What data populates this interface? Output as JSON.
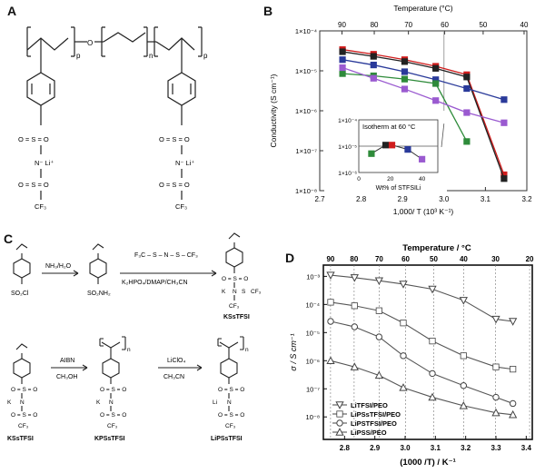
{
  "panels": {
    "A": {
      "label": "A",
      "subscript_p": "p",
      "subscript_n": "n",
      "oxygen": "O",
      "sulfonyl": "O = S = O",
      "nli": "N⁻ Li⁺",
      "cf3": "CF₃"
    },
    "B": {
      "label": "B",
      "inset_title": "Isotherm at 60 °C",
      "inset_xlabel": "Wt% of STFSILi"
    },
    "C": {
      "label": "C",
      "row1": {
        "start_group": "SO₂Cl",
        "step1_reagent": "NH₃/H₂O",
        "mid_group": "SO₂NH₂",
        "step2_reagent_top": "F₃C – S – N – S – CF₃",
        "step2_reagent_bottom": "K₂HPO₄/DMAP/CH₃CN",
        "product_name": "KSsTFSI"
      },
      "row2": {
        "start_name": "KSsTFSI",
        "step1_top": "AIBN",
        "step1_bottom": "CH₃OH",
        "mid_name": "KPSsTFSI",
        "step2_top": "LiClO₄",
        "step2_bottom": "CH₃CN",
        "product_name": "LiPSsTFSI"
      },
      "atoms": {
        "k": "K",
        "li": "Li",
        "n": "N",
        "s": "S",
        "o": "O",
        "cf3": "CF₃",
        "so2": "O = S = O",
        "n_sub": "n"
      }
    },
    "D": {
      "label": "D"
    }
  },
  "chart_data": [
    {
      "id": "B",
      "type": "line",
      "xlabel": "1,000/ T (10³ K⁻¹)",
      "ylabel": "Conductivity (S cm⁻¹)",
      "top_axis_label": "Temperature (°C)",
      "x_ticks": [
        "2.7",
        "2.8",
        "2.9",
        "3.0",
        "3.1",
        "3.2"
      ],
      "x_tick_values": [
        2.7,
        2.8,
        2.9,
        3.0,
        3.1,
        3.2
      ],
      "y_ticks": [
        "1×10⁻⁴",
        "1×10⁻⁵",
        "1×10⁻⁶",
        "1×10⁻⁷",
        "1×10⁻⁸"
      ],
      "y_tick_exps": [
        -4,
        -5,
        -6,
        -7,
        -8
      ],
      "top_ticks": [
        "90",
        "80",
        "70",
        "60",
        "50",
        "40"
      ],
      "top_tick_temps": [
        90,
        80,
        70,
        60,
        50,
        40
      ],
      "xlim": [
        2.7,
        3.2
      ],
      "ylim_log10": [
        -8,
        -4
      ],
      "reference_line_x": 3.0,
      "series": [
        {
          "color": "#d01c1c",
          "marker": "square",
          "x": [
            2.755,
            2.83,
            2.905,
            2.98,
            3.055,
            3.145
          ],
          "y": [
            3.4e-05,
            2.6e-05,
            1.9e-05,
            1.3e-05,
            8e-06,
            2.5e-08
          ]
        },
        {
          "color": "#222222",
          "marker": "square",
          "x": [
            2.755,
            2.83,
            2.905,
            2.98,
            3.055,
            3.145
          ],
          "y": [
            3e-05,
            2.3e-05,
            1.7e-05,
            1.15e-05,
            7e-06,
            2e-08
          ]
        },
        {
          "color": "#2a3a9a",
          "marker": "square",
          "x": [
            2.755,
            2.83,
            2.905,
            2.98,
            3.055,
            3.145
          ],
          "y": [
            1.9e-05,
            1.4e-05,
            9.5e-06,
            6e-06,
            3.6e-06,
            1.9e-06
          ]
        },
        {
          "color": "#2e8b3a",
          "marker": "square",
          "x": [
            2.755,
            2.83,
            2.905,
            2.98,
            3.055
          ],
          "y": [
            8.5e-06,
            7.5e-06,
            6.2e-06,
            4.8e-06,
            1.7e-07
          ]
        },
        {
          "color": "#9a5ad0",
          "marker": "square",
          "x": [
            2.755,
            2.83,
            2.905,
            2.98,
            3.055,
            3.145
          ],
          "y": [
            1.2e-05,
            6.5e-06,
            3.5e-06,
            1.8e-06,
            9e-07,
            5e-07
          ]
        }
      ],
      "inset": {
        "xlim": [
          0,
          50
        ],
        "ylim_log10": [
          -6,
          -4
        ],
        "x_ticks": [
          "0",
          "20",
          "40"
        ],
        "x_tick_values": [
          0,
          20,
          40
        ],
        "y_ticks": [
          "1×10⁻⁴",
          "1×10⁻⁵",
          "1×10⁻⁶"
        ],
        "y_tick_exps": [
          -4,
          -5,
          -6
        ],
        "reference_y": 1e-05,
        "points": [
          {
            "x": 8,
            "y": 5.2e-06,
            "color": "#2e8b3a"
          },
          {
            "x": 17,
            "y": 1.1e-05,
            "color": "#222222"
          },
          {
            "x": 21,
            "y": 1.1e-05,
            "color": "#d01c1c"
          },
          {
            "x": 31,
            "y": 7.5e-06,
            "color": "#2a3a9a"
          },
          {
            "x": 40,
            "y": 3.2e-06,
            "color": "#9a5ad0"
          }
        ]
      }
    },
    {
      "id": "D",
      "type": "line",
      "xlabel": "(1000 /T) / K⁻¹",
      "ylabel": "σ / S cm⁻¹",
      "top_axis_label": "Temperature / °C",
      "x_ticks": [
        "2.8",
        "2.9",
        "3.0",
        "3.1",
        "3.2",
        "3.3",
        "3.4"
      ],
      "x_tick_values": [
        2.8,
        2.9,
        3.0,
        3.1,
        3.2,
        3.3,
        3.4
      ],
      "y_ticks": [
        "10⁻³",
        "10⁻⁴",
        "10⁻⁵",
        "10⁻⁶",
        "10⁻⁷",
        "10⁻⁸"
      ],
      "y_tick_exps": [
        -3,
        -4,
        -5,
        -6,
        -7,
        -8
      ],
      "top_ticks": [
        "90",
        "80",
        "70",
        "60",
        "50",
        "40",
        "30",
        "20"
      ],
      "top_tick_temps": [
        90,
        80,
        70,
        60,
        50,
        40,
        30,
        20
      ],
      "xlim": [
        2.73,
        3.42
      ],
      "ylim_log10": [
        -8.8,
        -2.6
      ],
      "series": [
        {
          "name": "LiTFSI/PEO",
          "marker": "triangle-down",
          "x": [
            2.754,
            2.833,
            2.914,
            2.994,
            3.09,
            3.193,
            3.3,
            3.356
          ],
          "y": [
            0.0011,
            0.0009,
            0.0007,
            0.00053,
            0.00035,
            0.00014,
            3e-05,
            2.5e-05
          ]
        },
        {
          "name": "LiPSsTFSI/PEO",
          "marker": "square",
          "x": [
            2.754,
            2.833,
            2.914,
            2.994,
            3.09,
            3.193,
            3.3,
            3.356
          ],
          "y": [
            0.00012,
            9e-05,
            6e-05,
            2.2e-05,
            5e-06,
            1.5e-06,
            6e-07,
            5e-07
          ]
        },
        {
          "name": "LiPSTFSI/PEO",
          "marker": "circle",
          "x": [
            2.754,
            2.833,
            2.914,
            2.994,
            3.09,
            3.193,
            3.3,
            3.356
          ],
          "y": [
            2.5e-05,
            1.6e-05,
            7e-06,
            1.5e-06,
            3.5e-07,
            1.3e-07,
            5e-08,
            3e-08
          ]
        },
        {
          "name": "LiPSS/PEO",
          "marker": "triangle-up",
          "x": [
            2.754,
            2.833,
            2.914,
            2.994,
            3.09,
            3.193,
            3.3,
            3.356
          ],
          "y": [
            1e-06,
            6e-07,
            3e-07,
            1.1e-07,
            5e-08,
            2.5e-08,
            1.4e-08,
            1.2e-08
          ]
        }
      ]
    }
  ]
}
